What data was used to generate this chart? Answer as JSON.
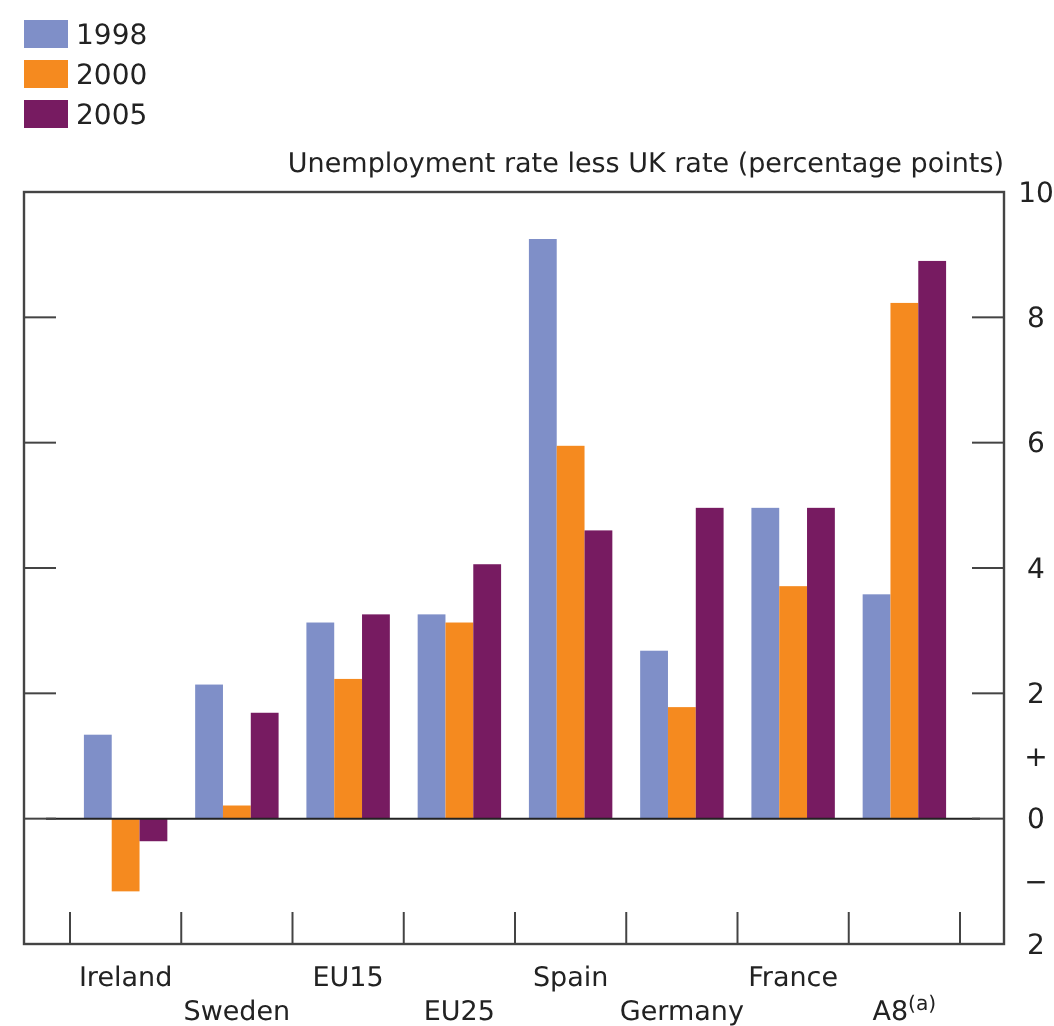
{
  "chart_data": {
    "type": "bar",
    "ylabel": "Unemployment rate less UK rate (percentage points)",
    "categories": [
      "Ireland",
      "Sweden",
      "EU15",
      "EU25",
      "Spain",
      "Germany",
      "France",
      "A8$^{(a)}$"
    ],
    "series": [
      {
        "name": "1998",
        "color": "#7f8fc8",
        "values": [
          1.34,
          2.14,
          3.13,
          3.26,
          9.25,
          2.68,
          4.96,
          3.58
        ]
      },
      {
        "name": "2000",
        "color": "#f58a1f",
        "values": [
          -1.16,
          0.21,
          2.23,
          3.13,
          5.95,
          1.78,
          3.71,
          8.23
        ]
      },
      {
        "name": "2005",
        "color": "#771b61",
        "values": [
          -0.36,
          1.69,
          3.26,
          4.06,
          4.6,
          4.96,
          4.96,
          8.9
        ]
      }
    ],
    "ylim": [
      -2,
      10
    ],
    "yticks": [
      10,
      8,
      6,
      4,
      2,
      {
        "value": 1,
        "label": "+"
      },
      0,
      {
        "value": -1,
        "label": "−"
      },
      {
        "value": -2,
        "label": "2"
      }
    ],
    "ref_lines": [
      {
        "axis": "y",
        "value": 0,
        "color": "#222222"
      }
    ],
    "legend": "top left"
  }
}
